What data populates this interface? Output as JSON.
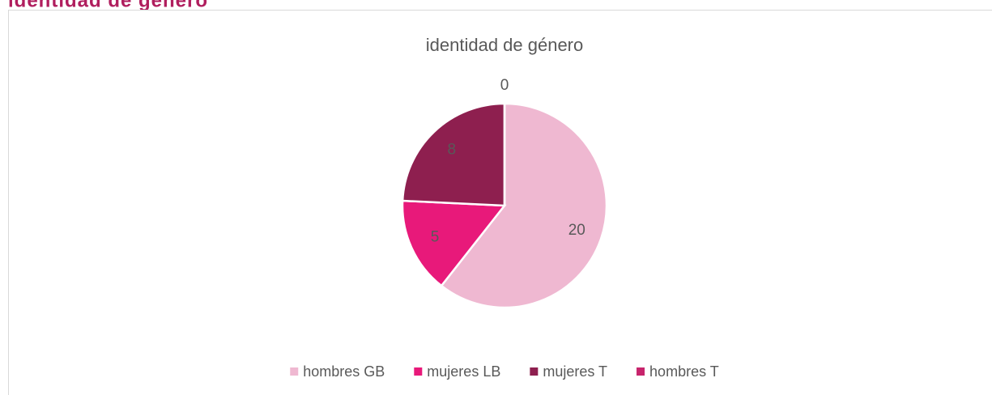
{
  "heading": "identidad de género",
  "chart_data": {
    "type": "pie",
    "title": "identidad de género",
    "categories": [
      "hombres GB",
      "mujeres LB",
      "mujeres T",
      "hombres T"
    ],
    "values": [
      20,
      5,
      8,
      0
    ],
    "colors": [
      "#efb8d1",
      "#e8197a",
      "#8e1f4f",
      "#c7246c"
    ],
    "legend": "bottom"
  }
}
